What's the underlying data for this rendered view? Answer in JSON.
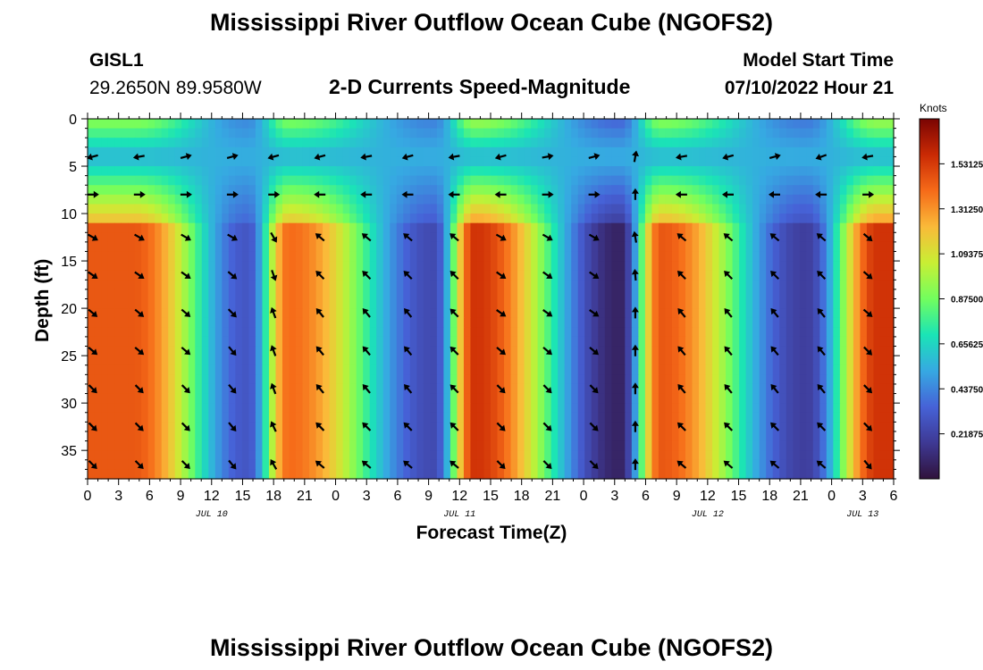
{
  "title": "Mississippi River Outflow Ocean Cube (NGOFS2)",
  "title_repeat": "Mississippi River Outflow Ocean Cube (NGOFS2)",
  "station": {
    "name": "GISL1",
    "coords": "29.2650N  89.9580W"
  },
  "model": {
    "label": "Model Start Time",
    "value": "07/10/2022 Hour 21"
  },
  "chart_data": {
    "type": "heatmap",
    "title": "2-D Currents Speed-Magnitude",
    "xlabel": "Forecast Time(Z)",
    "ylabel": "Depth (ft)",
    "xlim_hours": [
      0,
      78
    ],
    "ylim": [
      0,
      38
    ],
    "yticks": [
      0,
      5,
      10,
      15,
      20,
      25,
      30,
      35
    ],
    "xtick_labels": [
      "0",
      "3",
      "6",
      "9",
      "12",
      "15",
      "18",
      "21",
      "0",
      "3",
      "6",
      "9",
      "12",
      "15",
      "18",
      "21",
      "0",
      "3",
      "6",
      "9",
      "12",
      "15",
      "18",
      "21",
      "0",
      "3",
      "6"
    ],
    "date_labels": [
      {
        "label": "JUL 10",
        "hour": 12
      },
      {
        "label": "JUL 11",
        "hour": 36
      },
      {
        "label": "JUL 12",
        "hour": 60
      },
      {
        "label": "JUL 13",
        "hour": 75
      }
    ],
    "colorbar": {
      "unit": "Knots",
      "range": [
        0,
        1.75
      ],
      "tick_values": [
        0.21875,
        0.4375,
        0.65625,
        0.875,
        1.09375,
        1.3125,
        1.53125
      ],
      "tick_labels": [
        "0.21875",
        "0.43750",
        "0.65625",
        "0.87500",
        "1.09375",
        "1.31250",
        "1.53125"
      ],
      "colors": [
        "#30123b",
        "#3e3994",
        "#4662d7",
        "#36a9e2",
        "#1ae4b6",
        "#72fe5e",
        "#c8ef34",
        "#faba39",
        "#f66b19",
        "#ca2a04",
        "#7a0403"
      ]
    },
    "peaks": [
      {
        "hour": 4.5,
        "speed": 1.45
      },
      {
        "hour": 19.5,
        "speed": 1.4
      },
      {
        "hour": 37.5,
        "speed": 1.55
      },
      {
        "hour": 55.5,
        "speed": 1.45
      },
      {
        "hour": 76.5,
        "speed": 1.55
      }
    ],
    "troughs": [
      {
        "hour": 15.5,
        "speed": 0.3
      },
      {
        "hour": 33.5,
        "speed": 0.25
      },
      {
        "hour": 51.5,
        "speed": 0.08
      },
      {
        "hour": 69.5,
        "speed": 0.2
      }
    ],
    "vector_hours": [
      0.5,
      5,
      9.5,
      14,
      18,
      22.5,
      27,
      31,
      35.5,
      40,
      44.5,
      49,
      53,
      57.5,
      62,
      66.5,
      71,
      75.5
    ],
    "vector_depths": [
      4,
      8,
      12.5,
      16.5,
      20.5,
      24.5,
      28.5,
      32.5,
      36.5
    ],
    "vector_direction_deg": [
      [
        195,
        190,
        15,
        15,
        195,
        195,
        190,
        195,
        190,
        195,
        10,
        15,
        80,
        190,
        195,
        15,
        200,
        190
      ],
      [
        0,
        0,
        0,
        0,
        0,
        180,
        180,
        180,
        180,
        180,
        0,
        0,
        90,
        180,
        180,
        180,
        180,
        0
      ],
      [
        -30,
        -30,
        -30,
        -30,
        -60,
        140,
        140,
        140,
        140,
        -30,
        -30,
        -30,
        100,
        140,
        140,
        140,
        140,
        -40
      ],
      [
        -35,
        -35,
        -35,
        -40,
        -70,
        135,
        135,
        135,
        135,
        -35,
        -35,
        -35,
        95,
        135,
        135,
        135,
        135,
        -40
      ],
      [
        -40,
        -40,
        -40,
        -45,
        110,
        130,
        130,
        130,
        135,
        -35,
        -35,
        -35,
        90,
        130,
        130,
        130,
        130,
        -40
      ],
      [
        -40,
        -40,
        -40,
        -50,
        110,
        130,
        130,
        130,
        135,
        -40,
        -40,
        -40,
        90,
        130,
        130,
        130,
        130,
        -45
      ],
      [
        -45,
        -45,
        -45,
        -50,
        110,
        130,
        130,
        130,
        135,
        -45,
        -45,
        -45,
        90,
        130,
        130,
        130,
        130,
        -45
      ],
      [
        -45,
        -45,
        -45,
        -50,
        115,
        135,
        135,
        135,
        135,
        -45,
        -45,
        -45,
        90,
        135,
        135,
        135,
        135,
        -45
      ],
      [
        -45,
        -45,
        -45,
        -50,
        120,
        140,
        140,
        140,
        140,
        -45,
        -45,
        -45,
        90,
        140,
        140,
        140,
        140,
        -50
      ]
    ]
  }
}
